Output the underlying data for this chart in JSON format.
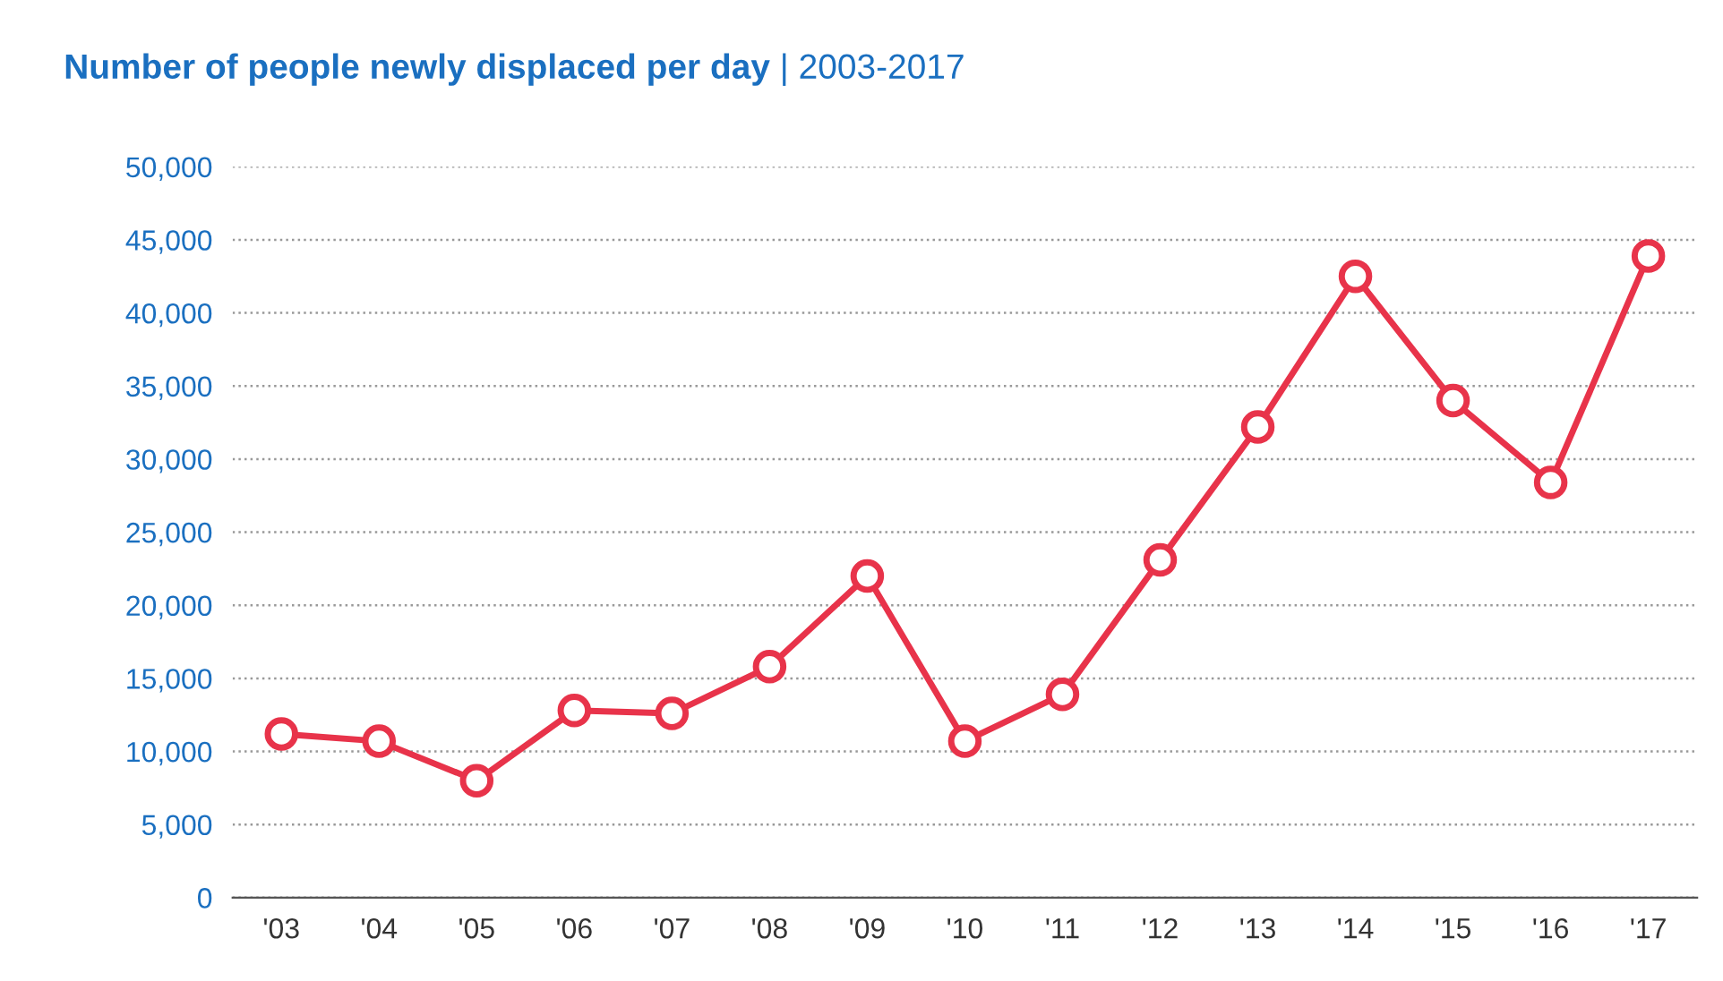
{
  "chart_data": {
    "type": "line",
    "title": "Number of people newly displaced per day",
    "subtitle": "| 2003-2017",
    "categories": [
      "'03",
      "'04",
      "'05",
      "'06",
      "'07",
      "'08",
      "'09",
      "'10",
      "'11",
      "'12",
      "'13",
      "'14",
      "'15",
      "'16",
      "'17"
    ],
    "series": [
      {
        "color": "#e8334a",
        "values": [
          11200,
          10700,
          8000,
          12800,
          12600,
          15800,
          22000,
          10700,
          13900,
          23100,
          32200,
          42500,
          34000,
          28400,
          43900
        ]
      }
    ],
    "ylim": [
      0,
      50000
    ],
    "yticks": [
      {
        "value": 0,
        "label": "0"
      },
      {
        "value": 5000,
        "label": "5,000"
      },
      {
        "value": 10000,
        "label": "10,000"
      },
      {
        "value": 15000,
        "label": "15,000"
      },
      {
        "value": 20000,
        "label": "20,000"
      },
      {
        "value": 25000,
        "label": "25,000"
      },
      {
        "value": 30000,
        "label": "30,000"
      },
      {
        "value": 35000,
        "label": "35,000"
      },
      {
        "value": 40000,
        "label": "40,000"
      },
      {
        "value": 45000,
        "label": "45,000"
      },
      {
        "value": 50000,
        "label": "50,000"
      }
    ],
    "grid": "y",
    "marker": "circle",
    "line_style": "solid"
  }
}
